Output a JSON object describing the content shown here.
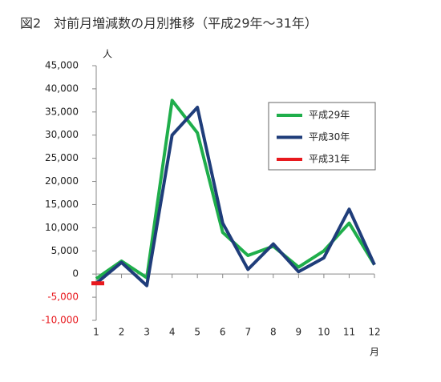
{
  "chart_data": {
    "type": "line",
    "title": "図2　対前月増減数の月別推移（平成29年～31年）",
    "y_unit": "人",
    "x_unit": "月",
    "categories": [
      "1",
      "2",
      "3",
      "4",
      "5",
      "6",
      "7",
      "8",
      "9",
      "10",
      "11",
      "12"
    ],
    "series": [
      {
        "name": "平成29年",
        "color": "#1fae4b",
        "values": [
          -1000,
          2800,
          -800,
          37500,
          30500,
          9000,
          4000,
          6000,
          1500,
          5000,
          11000,
          2000
        ]
      },
      {
        "name": "平成30年",
        "color": "#1f3d7a",
        "values": [
          -2000,
          2500,
          -2500,
          30000,
          36000,
          11000,
          1000,
          6500,
          500,
          3500,
          14000,
          2000
        ]
      },
      {
        "name": "平成31年",
        "color": "#e8191e",
        "values": [
          -2000,
          null,
          null,
          null,
          null,
          null,
          null,
          null,
          null,
          null,
          null,
          null
        ]
      }
    ],
    "ylim": [
      -10000,
      45000
    ],
    "yticks": [
      {
        "value": -10000,
        "label": "-10,000"
      },
      {
        "value": -5000,
        "label": "-5,000"
      },
      0,
      {
        "value": 5000,
        "label": "5,000"
      },
      {
        "value": 10000,
        "label": "10,000"
      },
      {
        "value": 15000,
        "label": "15,000"
      },
      {
        "value": 20000,
        "label": "20,000"
      },
      {
        "value": 25000,
        "label": "25,000"
      },
      {
        "value": 30000,
        "label": "30,000"
      },
      {
        "value": 35000,
        "label": "35,000"
      },
      {
        "value": 40000,
        "label": "40,000"
      },
      {
        "value": 45000,
        "label": "45,000"
      }
    ],
    "negative_tick_color": "#e8191e",
    "grid": false,
    "legend": "upper right"
  }
}
